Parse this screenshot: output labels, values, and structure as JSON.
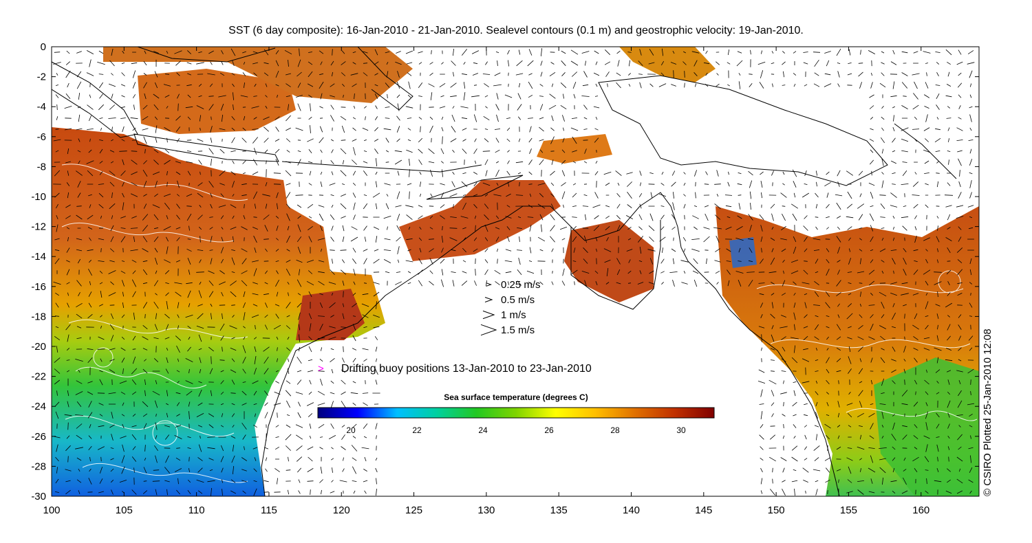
{
  "title": "SST (6 day composite): 16-Jan-2010 - 21-Jan-2010. Sealevel contours (0.1 m) and geostrophic velocity: 19-Jan-2010.",
  "axes": {
    "x_ticks": [
      "100",
      "105",
      "110",
      "115",
      "120",
      "125",
      "130",
      "135",
      "140",
      "145",
      "150",
      "155",
      "160"
    ],
    "y_ticks": [
      "0",
      "-2",
      "-4",
      "-6",
      "-8",
      "-10",
      "-12",
      "-14",
      "-16",
      "-18",
      "-20",
      "-22",
      "-24",
      "-26",
      "-28",
      "-30"
    ]
  },
  "velocity_legend": [
    {
      "label": "0.25 m/s",
      "speed": 0.25
    },
    {
      "label": "0.5 m/s",
      "speed": 0.5
    },
    {
      "label": "1 m/s",
      "speed": 1
    },
    {
      "label": "1.5 m/s",
      "speed": 1.5
    }
  ],
  "buoy_legend": {
    "label": "Drifting buoy positions 13-Jan-2010 to 23-Jan-2010",
    "marker": ">",
    "color": "#ff00ff"
  },
  "colorbar": {
    "title": "Sea surface temperature (degrees C)",
    "ticks": [
      "20",
      "22",
      "24",
      "26",
      "28",
      "30"
    ],
    "range": [
      19,
      31
    ],
    "colors": [
      "#00007f",
      "#0000ff",
      "#00bfff",
      "#00d0a0",
      "#22c822",
      "#7fd400",
      "#ffff00",
      "#ffbf00",
      "#e07000",
      "#c03000",
      "#800000"
    ]
  },
  "credit": "© CSIRO Plotted 25-Jan-2010 12:08",
  "chart_data": {
    "type": "heatmap",
    "title": "SST (6 day composite): 16-Jan-2010 - 21-Jan-2010. Sealevel contours (0.1 m) and geostrophic velocity: 19-Jan-2010.",
    "xlim": [
      100,
      164
    ],
    "ylim": [
      -30,
      0
    ],
    "colorbar_label": "Sea surface temperature (degrees C)",
    "colorbar_range": [
      19,
      31
    ]
  }
}
